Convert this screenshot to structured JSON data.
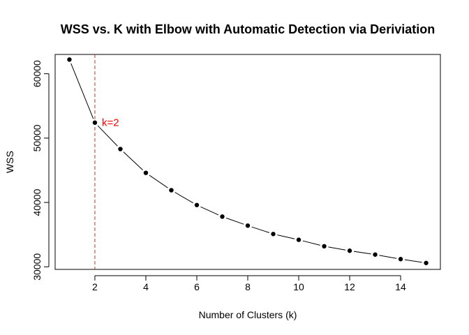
{
  "chart_data": {
    "type": "line",
    "title": "WSS vs. K with Elbow with Automatic Detection via Deriviation",
    "xlabel": "Number of Clusters (k)",
    "ylabel": "WSS",
    "xlim": [
      0.44,
      15.56
    ],
    "ylim": [
      29600,
      63000
    ],
    "x_ticks": [
      2,
      4,
      6,
      8,
      10,
      12,
      14
    ],
    "y_ticks": [
      30000,
      40000,
      50000,
      60000
    ],
    "series": [
      {
        "x": [
          1,
          2,
          3,
          4,
          5,
          6,
          7,
          8,
          9,
          10,
          11,
          12,
          13,
          14,
          15
        ],
        "y": [
          62200,
          52400,
          48300,
          44600,
          41900,
          39600,
          37800,
          36400,
          35100,
          34200,
          33200,
          32500,
          31900,
          31200,
          30600
        ]
      }
    ],
    "annotations": [
      {
        "type": "vline",
        "x": 2,
        "color": "#c0392b",
        "style": "dashed"
      },
      {
        "type": "text",
        "x": 2,
        "y": 52400,
        "text": "k=2",
        "color": "#ff0000"
      }
    ],
    "grid": false,
    "colors": {
      "line": "#000000",
      "points": "#000000",
      "elbow": "#c0392b",
      "annotation_text": "#ff0000"
    }
  }
}
